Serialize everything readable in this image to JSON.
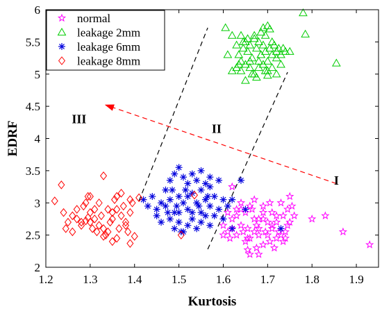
{
  "chart_data": {
    "type": "scatter",
    "title": "",
    "xlabel": "Kurtosis",
    "ylabel": "EDRF",
    "xlim": [
      1.2,
      1.95
    ],
    "ylim": [
      2,
      6
    ],
    "xticks": [
      "1.2",
      "1.3",
      "1.4",
      "1.5",
      "1.6",
      "1.7",
      "1.8",
      "1.9"
    ],
    "yticks": [
      "2",
      "2.5",
      "3",
      "3.5",
      "4",
      "4.5",
      "5",
      "5.5",
      "6"
    ],
    "grid": false,
    "legend_position": "top-left",
    "series": [
      {
        "name": "normal",
        "marker": "pentagram",
        "color": "#ff00ff",
        "points": [
          [
            1.6,
            2.5
          ],
          [
            1.61,
            2.55
          ],
          [
            1.62,
            2.6
          ],
          [
            1.63,
            2.5
          ],
          [
            1.64,
            2.65
          ],
          [
            1.65,
            2.4
          ],
          [
            1.66,
            2.45
          ],
          [
            1.67,
            2.55
          ],
          [
            1.68,
            2.5
          ],
          [
            1.69,
            2.35
          ],
          [
            1.66,
            2.2
          ],
          [
            1.655,
            2.27
          ],
          [
            1.64,
            2.9
          ],
          [
            1.65,
            2.85
          ],
          [
            1.66,
            2.95
          ],
          [
            1.67,
            2.75
          ],
          [
            1.68,
            2.6
          ],
          [
            1.7,
            2.7
          ],
          [
            1.71,
            2.6
          ],
          [
            1.72,
            2.8
          ],
          [
            1.73,
            2.5
          ],
          [
            1.74,
            2.45
          ],
          [
            1.62,
            2.75
          ],
          [
            1.63,
            2.8
          ],
          [
            1.645,
            2.55
          ],
          [
            1.675,
            2.65
          ],
          [
            1.695,
            2.55
          ],
          [
            1.705,
            2.4
          ],
          [
            1.72,
            2.45
          ],
          [
            1.735,
            2.4
          ],
          [
            1.74,
            2.55
          ],
          [
            1.75,
            2.7
          ],
          [
            1.76,
            2.8
          ],
          [
            1.745,
            2.9
          ],
          [
            1.755,
            2.95
          ],
          [
            1.73,
            3.0
          ],
          [
            1.705,
            3.0
          ],
          [
            1.69,
            2.85
          ],
          [
            1.67,
            3.05
          ],
          [
            1.63,
            2.9
          ],
          [
            1.61,
            2.85
          ],
          [
            1.6,
            2.65
          ],
          [
            1.615,
            2.45
          ],
          [
            1.69,
            2.75
          ],
          [
            1.71,
            2.85
          ],
          [
            1.675,
            2.3
          ],
          [
            1.715,
            2.3
          ],
          [
            1.725,
            2.55
          ],
          [
            1.655,
            2.6
          ],
          [
            1.68,
            2.75
          ],
          [
            1.7,
            2.5
          ],
          [
            1.735,
            2.8
          ],
          [
            1.745,
            2.65
          ],
          [
            1.665,
            2.9
          ],
          [
            1.69,
            2.95
          ],
          [
            1.72,
            2.7
          ],
          [
            1.655,
            2.45
          ],
          [
            1.68,
            2.2
          ],
          [
            1.75,
            3.1
          ],
          [
            1.62,
            3.25
          ],
          [
            1.8,
            2.75
          ],
          [
            1.83,
            2.8
          ],
          [
            1.93,
            2.35
          ],
          [
            1.87,
            2.55
          ],
          [
            1.64,
            3.0
          ],
          [
            1.71,
            2.65
          ]
        ]
      },
      {
        "name": "leakage 2mm",
        "marker": "triangle",
        "color": "#00cc00",
        "points": [
          [
            1.605,
            5.72
          ],
          [
            1.62,
            5.6
          ],
          [
            1.63,
            5.45
          ],
          [
            1.635,
            5.3
          ],
          [
            1.64,
            5.2
          ],
          [
            1.645,
            5.4
          ],
          [
            1.65,
            5.5
          ],
          [
            1.655,
            5.35
          ],
          [
            1.66,
            5.45
          ],
          [
            1.665,
            5.25
          ],
          [
            1.67,
            5.6
          ],
          [
            1.675,
            5.4
          ],
          [
            1.68,
            5.5
          ],
          [
            1.685,
            5.3
          ],
          [
            1.69,
            5.45
          ],
          [
            1.695,
            5.35
          ],
          [
            1.7,
            5.2
          ],
          [
            1.705,
            5.4
          ],
          [
            1.71,
            5.3
          ],
          [
            1.715,
            5.45
          ],
          [
            1.72,
            5.35
          ],
          [
            1.725,
            5.4
          ],
          [
            1.73,
            5.3
          ],
          [
            1.735,
            5.4
          ],
          [
            1.74,
            5.35
          ],
          [
            1.63,
            5.1
          ],
          [
            1.64,
            5.05
          ],
          [
            1.65,
            5.15
          ],
          [
            1.66,
            5.1
          ],
          [
            1.67,
            5.0
          ],
          [
            1.68,
            5.1
          ],
          [
            1.69,
            5.15
          ],
          [
            1.7,
            5.05
          ],
          [
            1.71,
            5.1
          ],
          [
            1.72,
            5.0
          ],
          [
            1.62,
            5.05
          ],
          [
            1.65,
            4.9
          ],
          [
            1.665,
            5.0
          ],
          [
            1.675,
            4.95
          ],
          [
            1.695,
            5.05
          ],
          [
            1.7,
            4.98
          ],
          [
            1.705,
            5.7
          ],
          [
            1.7,
            5.75
          ],
          [
            1.695,
            5.6
          ],
          [
            1.685,
            5.65
          ],
          [
            1.69,
            5.72
          ],
          [
            1.67,
            5.55
          ],
          [
            1.655,
            5.55
          ],
          [
            1.64,
            5.6
          ],
          [
            1.645,
            5.5
          ],
          [
            1.66,
            5.2
          ],
          [
            1.68,
            5.2
          ],
          [
            1.73,
            5.15
          ],
          [
            1.72,
            5.25
          ],
          [
            1.75,
            5.35
          ],
          [
            1.785,
            5.62
          ],
          [
            1.78,
            5.95
          ],
          [
            1.855,
            5.17
          ],
          [
            1.61,
            5.3
          ],
          [
            1.635,
            5.15
          ],
          [
            1.685,
            5.3
          ],
          [
            1.71,
            5.5
          ]
        ]
      },
      {
        "name": "leakage 6mm",
        "marker": "asterisk",
        "color": "#0000dd",
        "points": [
          [
            1.42,
            3.05
          ],
          [
            1.43,
            2.95
          ],
          [
            1.44,
            3.1
          ],
          [
            1.45,
            2.9
          ],
          [
            1.46,
            3.0
          ],
          [
            1.47,
            3.2
          ],
          [
            1.48,
            3.05
          ],
          [
            1.49,
            2.85
          ],
          [
            1.5,
            3.1
          ],
          [
            1.51,
            3.0
          ],
          [
            1.52,
            2.9
          ],
          [
            1.53,
            3.15
          ],
          [
            1.54,
            3.0
          ],
          [
            1.55,
            2.85
          ],
          [
            1.56,
            3.05
          ],
          [
            1.57,
            2.95
          ],
          [
            1.58,
            3.1
          ],
          [
            1.59,
            2.9
          ],
          [
            1.6,
            3.05
          ],
          [
            1.61,
            2.95
          ],
          [
            1.48,
            3.35
          ],
          [
            1.49,
            3.45
          ],
          [
            1.5,
            3.55
          ],
          [
            1.51,
            3.4
          ],
          [
            1.52,
            3.3
          ],
          [
            1.53,
            3.45
          ],
          [
            1.54,
            3.35
          ],
          [
            1.55,
            3.5
          ],
          [
            1.56,
            3.3
          ],
          [
            1.57,
            3.4
          ],
          [
            1.48,
            2.75
          ],
          [
            1.49,
            2.6
          ],
          [
            1.5,
            2.7
          ],
          [
            1.51,
            2.55
          ],
          [
            1.52,
            2.65
          ],
          [
            1.53,
            2.75
          ],
          [
            1.54,
            2.6
          ],
          [
            1.55,
            2.7
          ],
          [
            1.56,
            2.8
          ],
          [
            1.57,
            2.65
          ],
          [
            1.45,
            2.8
          ],
          [
            1.46,
            2.7
          ],
          [
            1.47,
            2.95
          ],
          [
            1.5,
            2.85
          ],
          [
            1.53,
            2.85
          ],
          [
            1.55,
            3.2
          ],
          [
            1.57,
            3.25
          ],
          [
            1.58,
            2.8
          ],
          [
            1.59,
            3.35
          ],
          [
            1.6,
            2.75
          ],
          [
            1.62,
            3.05
          ],
          [
            1.64,
            3.35
          ],
          [
            1.62,
            2.6
          ],
          [
            1.65,
            2.9
          ],
          [
            1.73,
            2.6
          ],
          [
            1.485,
            3.2
          ],
          [
            1.515,
            3.2
          ],
          [
            1.545,
            2.95
          ],
          [
            1.565,
            3.1
          ],
          [
            1.52,
            3.1
          ],
          [
            1.495,
            2.95
          ],
          [
            1.475,
            2.85
          ],
          [
            1.505,
            2.55
          ]
        ]
      },
      {
        "name": "leakage 8mm",
        "marker": "diamond",
        "color": "#ff0000",
        "points": [
          [
            1.22,
            3.03
          ],
          [
            1.235,
            3.28
          ],
          [
            1.24,
            2.85
          ],
          [
            1.245,
            2.6
          ],
          [
            1.25,
            2.7
          ],
          [
            1.26,
            2.8
          ],
          [
            1.27,
            2.75
          ],
          [
            1.28,
            2.7
          ],
          [
            1.285,
            2.95
          ],
          [
            1.29,
            3.0
          ],
          [
            1.295,
            3.1
          ],
          [
            1.3,
            2.85
          ],
          [
            1.305,
            2.6
          ],
          [
            1.31,
            2.75
          ],
          [
            1.315,
            2.55
          ],
          [
            1.32,
            2.65
          ],
          [
            1.325,
            2.8
          ],
          [
            1.33,
            3.42
          ],
          [
            1.335,
            2.5
          ],
          [
            1.34,
            2.9
          ],
          [
            1.345,
            2.7
          ],
          [
            1.35,
            2.75
          ],
          [
            1.355,
            3.05
          ],
          [
            1.36,
            3.1
          ],
          [
            1.365,
            2.6
          ],
          [
            1.37,
            2.8
          ],
          [
            1.375,
            2.95
          ],
          [
            1.38,
            2.7
          ],
          [
            1.385,
            2.55
          ],
          [
            1.39,
            2.85
          ],
          [
            1.395,
            3.0
          ],
          [
            1.4,
            2.48
          ],
          [
            1.39,
            2.37
          ],
          [
            1.36,
            2.45
          ],
          [
            1.33,
            2.48
          ],
          [
            1.3,
            2.7
          ],
          [
            1.28,
            2.65
          ],
          [
            1.27,
            2.9
          ],
          [
            1.26,
            2.55
          ],
          [
            1.29,
            2.72
          ],
          [
            1.31,
            2.9
          ],
          [
            1.32,
            3.0
          ],
          [
            1.33,
            2.6
          ],
          [
            1.34,
            2.55
          ],
          [
            1.35,
            2.85
          ],
          [
            1.36,
            2.9
          ],
          [
            1.37,
            3.15
          ],
          [
            1.38,
            2.65
          ],
          [
            1.39,
            3.05
          ],
          [
            1.35,
            2.4
          ],
          [
            1.295,
            2.77
          ],
          [
            1.3,
            3.1
          ],
          [
            1.41,
            3.08
          ],
          [
            1.505,
            2.5
          ],
          [
            1.535,
            3.12
          ]
        ]
      }
    ],
    "annotations": [
      {
        "text": "I",
        "x": 1.855,
        "y": 3.35
      },
      {
        "text": "II",
        "x": 1.585,
        "y": 4.15
      },
      {
        "text": "III",
        "x": 1.275,
        "y": 4.3
      }
    ],
    "dashed_lines": [
      {
        "color": "#000000",
        "from": [
          1.41,
          3.03
        ],
        "to": [
          1.565,
          5.72
        ]
      },
      {
        "color": "#000000",
        "from": [
          1.565,
          2.28
        ],
        "to": [
          1.745,
          5.03
        ]
      }
    ],
    "arrow": {
      "color": "#ff0000",
      "from": [
        1.855,
        3.3
      ],
      "to": [
        1.335,
        4.52
      ]
    }
  }
}
